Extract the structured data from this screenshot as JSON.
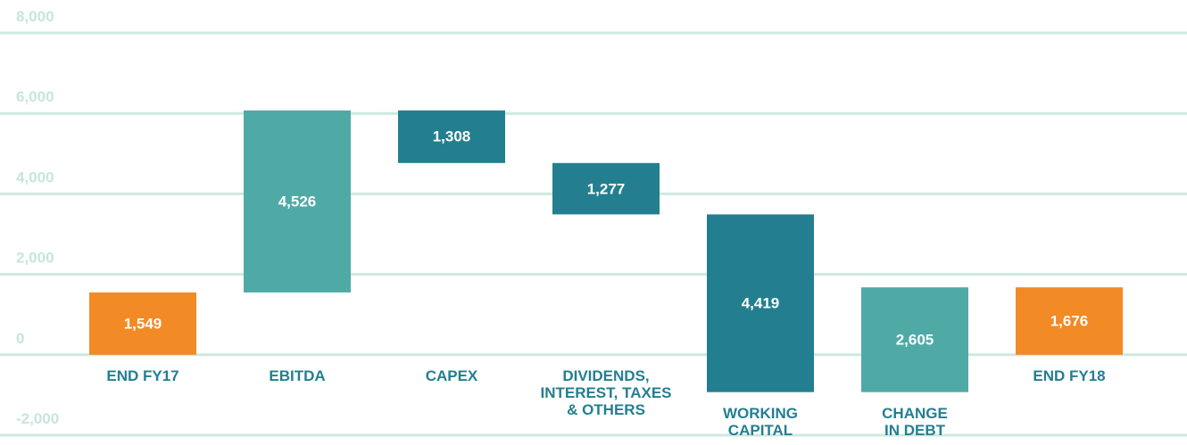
{
  "chart_data": {
    "type": "waterfall",
    "categories": [
      "END FY17",
      "EBITDA",
      "CAPEX",
      "DIVIDENDS,\nINTEREST, TAXES\n& OTHERS",
      "WORKING\nCAPITAL",
      "CHANGE\nIN DEBT",
      "END FY18"
    ],
    "values": [
      1549,
      4526,
      -1308,
      -1277,
      -4419,
      2605,
      1676
    ],
    "value_labels": [
      "1,549",
      "4,526",
      "1,308",
      "1,277",
      "4,419",
      "2,605",
      "1,676"
    ],
    "totals": [
      true,
      false,
      false,
      false,
      false,
      false,
      true
    ],
    "colors": {
      "total": "#f28a25",
      "increase": "#4faaa6",
      "decrease": "#237f8f"
    },
    "ylim": [
      -2000,
      8000
    ],
    "yticks": [
      {
        "value": -2000,
        "label": "-2,000"
      },
      0,
      {
        "value": 2000,
        "label": "2,000"
      },
      {
        "value": 4000,
        "label": "4,000"
      },
      {
        "value": 6000,
        "label": "6,000"
      },
      {
        "value": 8000,
        "label": "8,000"
      }
    ],
    "grid": true
  }
}
